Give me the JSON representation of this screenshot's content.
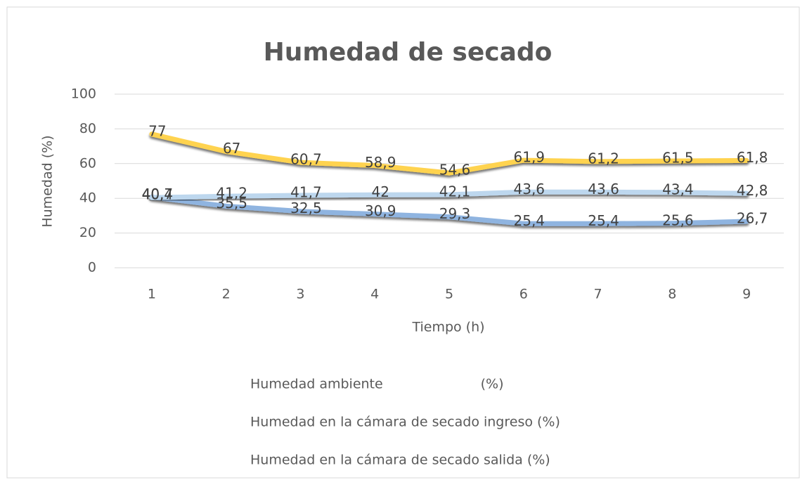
{
  "chart_data": {
    "type": "line",
    "title": "Humedad de secado",
    "x_label": "Tiempo (h)",
    "y_label": "Humedad (%)",
    "categories": [
      "1",
      "2",
      "3",
      "4",
      "5",
      "6",
      "7",
      "8",
      "9"
    ],
    "series": [
      {
        "name": "Humedad ambiente                       (%)",
        "color": "#ffd34f",
        "values": [
          77,
          67,
          60.7,
          58.9,
          54.6,
          61.9,
          61.2,
          61.5,
          61.8
        ],
        "value_labels": [
          "77",
          "67",
          "60,7",
          "58,9",
          "54,6",
          "61,9",
          "61,2",
          "61,5",
          "61,8"
        ]
      },
      {
        "name": "Humedad en la cámara de secado ingreso (%)",
        "color": "#8fb4e0",
        "values": [
          40.7,
          35.5,
          32.5,
          30.9,
          29.3,
          25.4,
          25.4,
          25.6,
          26.7
        ],
        "value_labels": [
          "40,7",
          "35,5",
          "32,5",
          "30,9",
          "29,3",
          "25,4",
          "25,4",
          "25,6",
          "26,7"
        ]
      },
      {
        "name": "Humedad en la cámara de secado salida (%)",
        "color": "#bdd7ee",
        "values": [
          40.4,
          41.2,
          41.7,
          42,
          42.1,
          43.6,
          43.6,
          43.4,
          42.8
        ],
        "value_labels": [
          "40,4",
          "41,2",
          "41,7",
          "42",
          "42,1",
          "43,6",
          "43,6",
          "43,4",
          "42,8"
        ]
      }
    ],
    "ylim": [
      0,
      100
    ],
    "yticks": [
      0,
      20,
      40,
      60,
      80,
      100
    ],
    "grid": true,
    "legend": "bottom"
  }
}
